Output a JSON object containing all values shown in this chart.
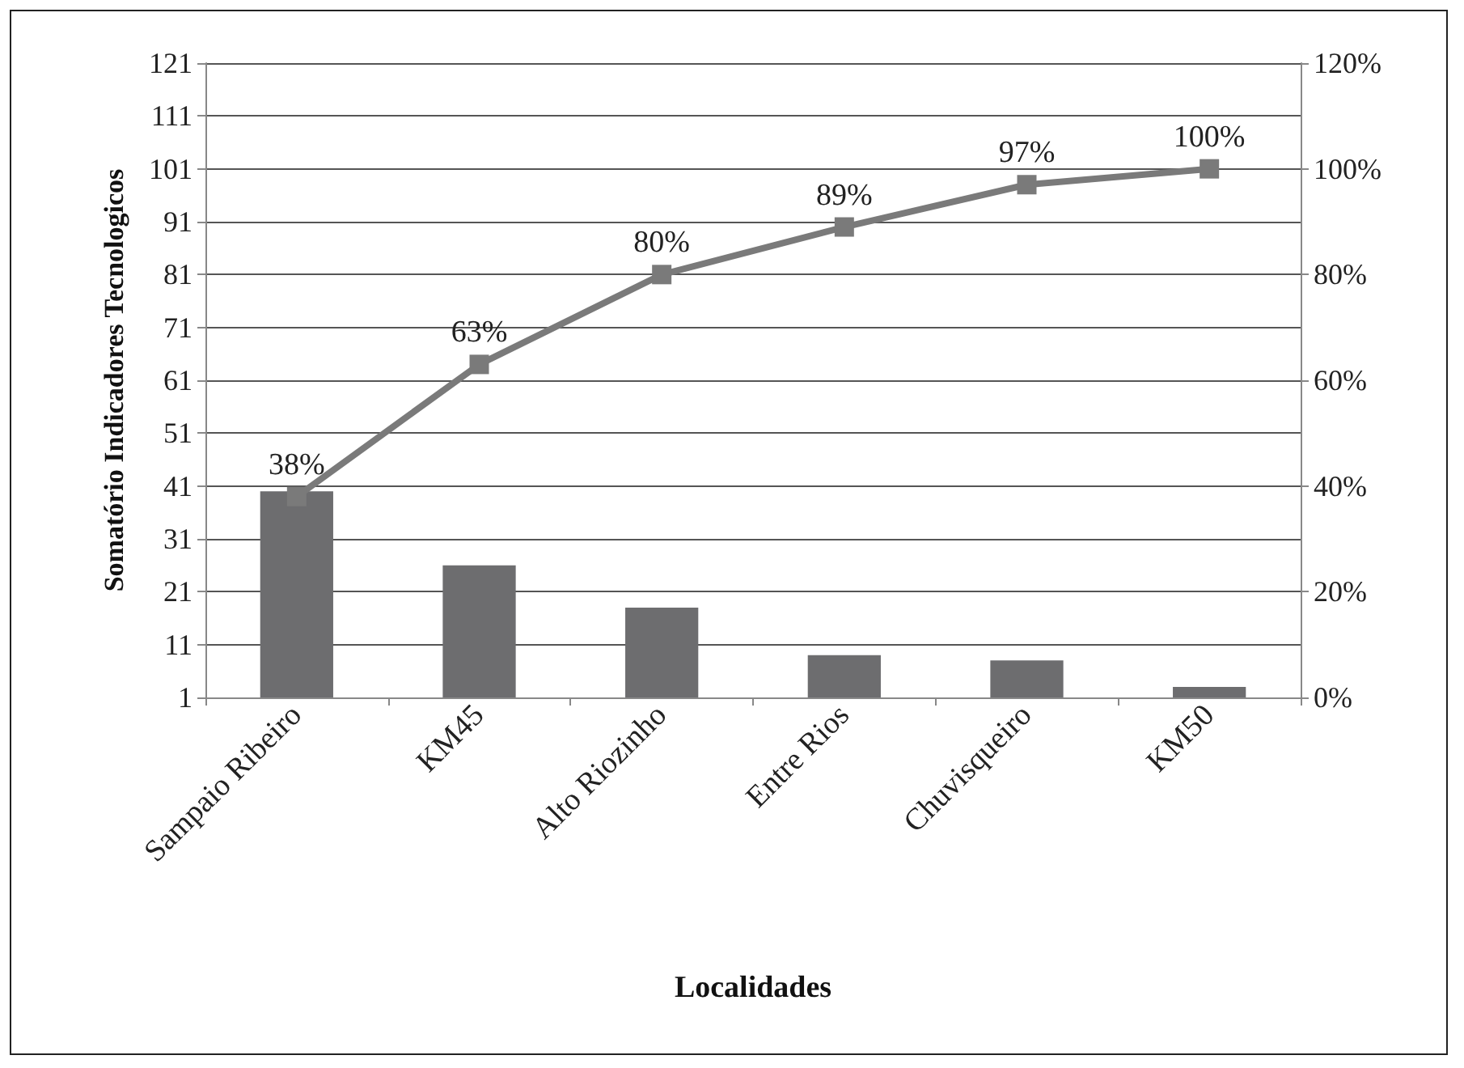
{
  "chart_data": {
    "type": "bar",
    "xlabel": "Localidades",
    "ylabel": "Somatório Indicadores Tecnologicos",
    "categories": [
      "Sampaio Ribeiro",
      "KM45",
      "Alto Riozinho",
      "Entre Rios",
      "Chuvisqueiro",
      "KM50"
    ],
    "series": [
      {
        "color": "#6d6d6f",
        "values": [
          40,
          26,
          18,
          9,
          8,
          3
        ]
      },
      {
        "type": "line",
        "axis": "y2",
        "color": "#7a7a7a",
        "marker": "square",
        "line_style": "solid",
        "values": [
          38,
          63,
          80,
          89,
          97,
          100
        ],
        "value_labels": [
          "38%",
          "63%",
          "80%",
          "89%",
          "97%",
          "100%"
        ]
      }
    ],
    "ylim": [
      1,
      121
    ],
    "yticks": [
      1,
      11,
      21,
      31,
      41,
      51,
      61,
      71,
      81,
      91,
      101,
      111,
      121
    ],
    "y2lim": [
      0,
      120
    ],
    "y2ticks": [
      {
        "value": 0,
        "label": "0%"
      },
      {
        "value": 20,
        "label": "20%"
      },
      {
        "value": 40,
        "label": "40%"
      },
      {
        "value": 60,
        "label": "60%"
      },
      {
        "value": 80,
        "label": "80%"
      },
      {
        "value": 100,
        "label": "100%"
      },
      {
        "value": 120,
        "label": "120%"
      }
    ],
    "grid": "y"
  }
}
